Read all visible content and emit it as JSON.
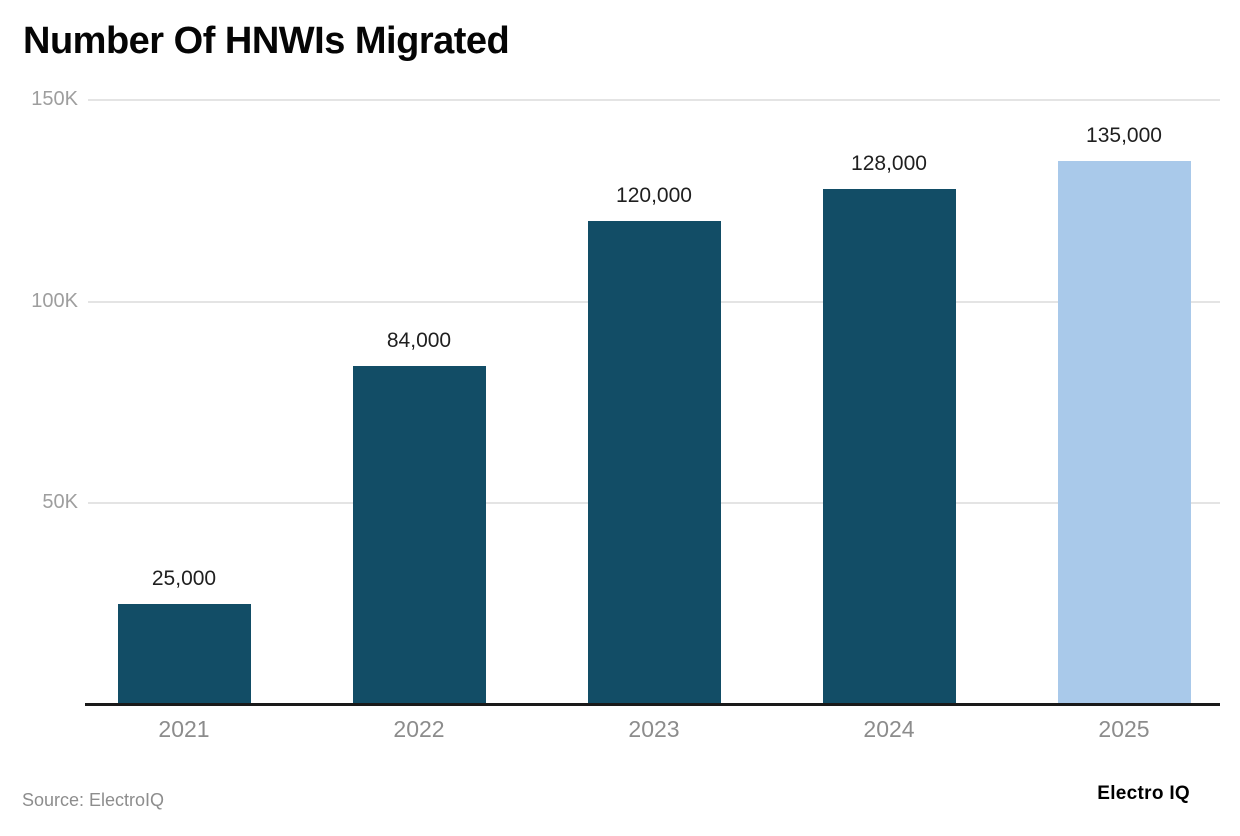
{
  "title": "Number Of HNWIs Migrated",
  "footer": {
    "source": "Source: ElectroIQ",
    "brand": "Electro IQ"
  },
  "colors": {
    "bar": "#124d66",
    "bar_highlight": "#a9c9ea",
    "gridline": "#e4e4e4",
    "axis": "#1a1a1a",
    "y_tick_label": "#9e9e9e",
    "x_tick_label": "#8c8c8c",
    "value_label": "#1f1f1f"
  },
  "chart_data": {
    "type": "bar",
    "title": "Number Of HNWIs Migrated",
    "categories": [
      "2021",
      "2022",
      "2023",
      "2024",
      "2025"
    ],
    "values": [
      25000,
      84000,
      120000,
      128000,
      135000
    ],
    "value_labels": [
      "25,000",
      "84,000",
      "120,000",
      "128,000",
      "135,000"
    ],
    "highlight_index": 4,
    "xlabel": "",
    "ylabel": "",
    "ylim": [
      0,
      150000
    ],
    "y_ticks": [
      {
        "value": 150000,
        "label": "150K"
      },
      {
        "value": 100000,
        "label": "100K"
      },
      {
        "value": 50000,
        "label": "50K"
      }
    ],
    "grid": true,
    "legend": false
  }
}
